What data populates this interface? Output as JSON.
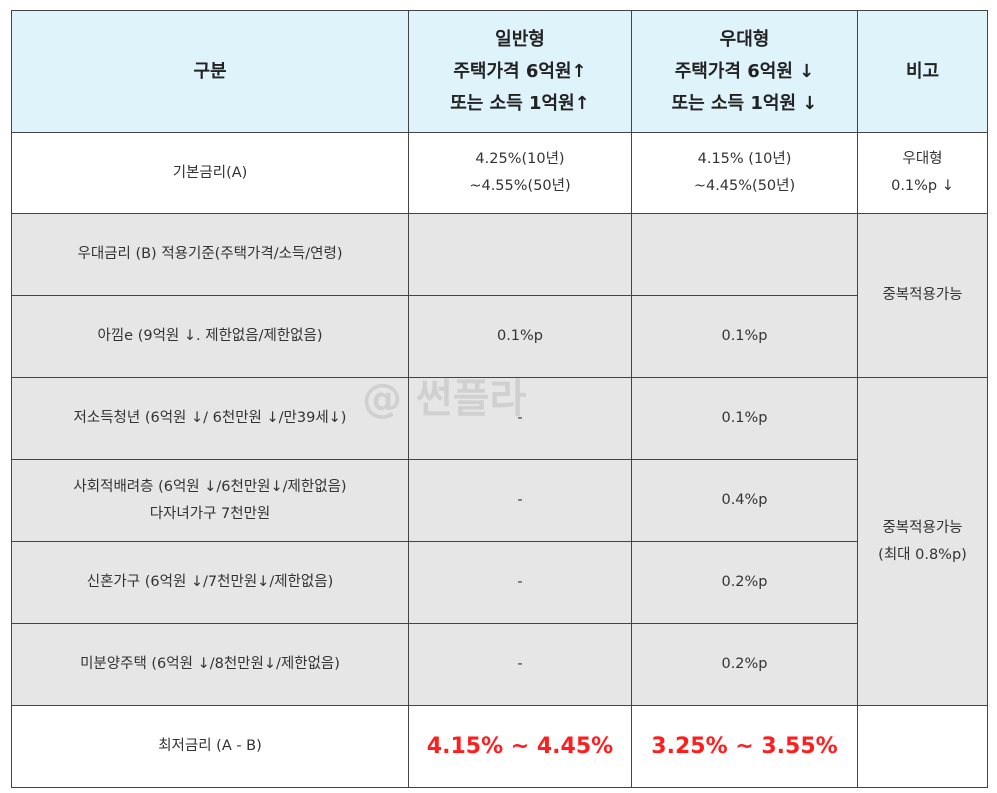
{
  "header": {
    "category": "구분",
    "general": [
      "일반형",
      "주택가격 6억원↑",
      "또는 소득 1억원↑"
    ],
    "preferential": [
      "우대형",
      "주택가격 6억원 ↓",
      "또는 소득 1억원 ↓"
    ],
    "note": "비고"
  },
  "rows": {
    "base_rate": {
      "label": "기본금리(A)",
      "general": [
        "4.25%(10년)",
        "~4.55%(50년)"
      ],
      "preferential": [
        "4.15% (10년)",
        "~4.45%(50년)"
      ],
      "note": [
        "우대형",
        "0.1%p ↓"
      ]
    },
    "criteria": {
      "label": "우대금리 (B) 적용기준(주택가격/소득/연령)"
    },
    "agim": {
      "label": "아낌e (9억원 ↓. 제한없음/제한없음)",
      "general": "0.1%p",
      "preferential": "0.1%p"
    },
    "note_group1": "중복적용가능",
    "youth": {
      "label": "저소득청년 (6억원 ↓/ 6천만원 ↓/만39세↓)",
      "general": "-",
      "preferential": "0.1%p"
    },
    "social": {
      "label": [
        "사회적배려층 (6억원 ↓/6천만원↓/제한없음)",
        "다자녀가구 7천만원"
      ],
      "general": "-",
      "preferential": "0.4%p"
    },
    "newlywed": {
      "label": "신혼가구 (6억원 ↓/7천만원↓/제한없음)",
      "general": "-",
      "preferential": "0.2%p"
    },
    "unsold": {
      "label": "미분양주택 (6억원 ↓/8천만원↓/제한없음)",
      "general": "-",
      "preferential": "0.2%p"
    },
    "note_group2": [
      "중복적용가능",
      "(최대 0.8%p)"
    ],
    "lowest": {
      "label": "최저금리 (A - B)",
      "general": "4.15% ~ 4.45%",
      "preferential": "3.25% ~ 3.55%"
    }
  },
  "watermark": "@ 썬플라",
  "colors": {
    "header_bg": "#dff3fb",
    "shaded_bg": "#e6e6e6",
    "highlight_red": "#ff1e1e"
  }
}
